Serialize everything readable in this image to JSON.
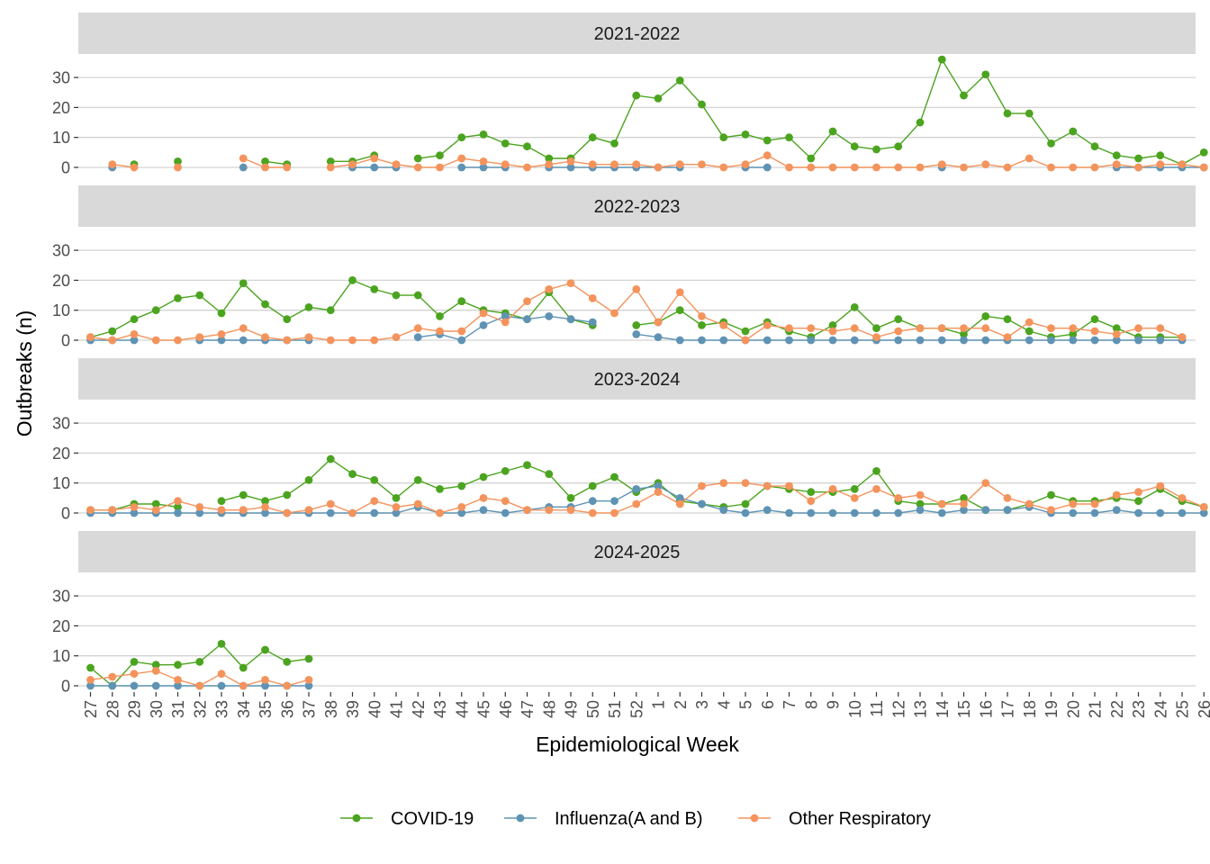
{
  "chart_data": {
    "type": "line",
    "xlabel": "Epidemiological Week",
    "ylabel": "Outbreaks (n)",
    "ylim": [
      0,
      37
    ],
    "yticks": [
      0,
      10,
      20,
      30
    ],
    "grid": true,
    "legend_position": "bottom",
    "x": [
      "27",
      "28",
      "29",
      "30",
      "31",
      "32",
      "33",
      "34",
      "35",
      "36",
      "37",
      "38",
      "39",
      "40",
      "41",
      "42",
      "43",
      "44",
      "45",
      "46",
      "47",
      "48",
      "49",
      "50",
      "51",
      "52",
      "1",
      "2",
      "3",
      "4",
      "5",
      "6",
      "7",
      "8",
      "9",
      "10",
      "11",
      "12",
      "13",
      "14",
      "15",
      "16",
      "17",
      "18",
      "19",
      "20",
      "21",
      "22",
      "23",
      "24",
      "25",
      "26"
    ],
    "series_styles": [
      {
        "name": "COVID-19",
        "color": "#4ba41f"
      },
      {
        "name": "Influenza(A and B)",
        "color": "#5f93b4"
      },
      {
        "name": "Other Respiratory",
        "color": "#f4935c"
      }
    ],
    "panels": [
      {
        "title": "2021-2022",
        "series": [
          {
            "name": "COVID-19",
            "values": [
              null,
              null,
              1,
              null,
              2,
              null,
              null,
              null,
              2,
              1,
              null,
              2,
              2,
              4,
              null,
              3,
              4,
              10,
              11,
              8,
              7,
              3,
              3,
              10,
              8,
              24,
              23,
              29,
              21,
              10,
              11,
              9,
              10,
              3,
              12,
              7,
              6,
              7,
              15,
              36,
              24,
              31,
              18,
              18,
              8,
              12,
              7,
              4,
              3,
              4,
              1,
              5
            ]
          },
          {
            "name": "Influenza(A and B)",
            "values": [
              null,
              0,
              null,
              null,
              null,
              null,
              null,
              0,
              null,
              null,
              null,
              null,
              0,
              0,
              0,
              null,
              null,
              0,
              0,
              0,
              null,
              0,
              0,
              0,
              0,
              0,
              0,
              0,
              null,
              null,
              0,
              0,
              null,
              null,
              null,
              null,
              null,
              null,
              null,
              0,
              null,
              null,
              null,
              null,
              null,
              null,
              null,
              0,
              0,
              0,
              0,
              0
            ]
          },
          {
            "name": "Other Respiratory",
            "values": [
              null,
              1,
              0,
              null,
              0,
              null,
              null,
              3,
              0,
              0,
              null,
              0,
              1,
              3,
              1,
              0,
              0,
              3,
              2,
              1,
              0,
              1,
              2,
              1,
              1,
              1,
              0,
              1,
              1,
              0,
              1,
              4,
              0,
              0,
              0,
              0,
              0,
              0,
              0,
              1,
              0,
              1,
              0,
              3,
              0,
              0,
              0,
              1,
              0,
              1,
              1,
              0
            ]
          }
        ]
      },
      {
        "title": "2022-2023",
        "series": [
          {
            "name": "COVID-19",
            "values": [
              1,
              3,
              7,
              10,
              14,
              15,
              9,
              19,
              12,
              7,
              11,
              10,
              20,
              17,
              15,
              15,
              8,
              13,
              10,
              9,
              7,
              16,
              7,
              5,
              null,
              5,
              6,
              10,
              5,
              6,
              3,
              6,
              3,
              1,
              5,
              11,
              4,
              7,
              4,
              4,
              2,
              8,
              7,
              3,
              1,
              2,
              7,
              4,
              1,
              1,
              1,
              null
            ]
          },
          {
            "name": "Influenza(A and B)",
            "values": [
              0,
              0,
              0,
              null,
              null,
              0,
              0,
              0,
              0,
              0,
              0,
              null,
              null,
              null,
              null,
              1,
              2,
              0,
              5,
              8,
              7,
              8,
              7,
              6,
              null,
              2,
              1,
              0,
              0,
              0,
              0,
              0,
              0,
              0,
              0,
              0,
              0,
              0,
              0,
              0,
              0,
              0,
              0,
              0,
              0,
              0,
              0,
              0,
              0,
              0,
              0,
              null
            ]
          },
          {
            "name": "Other Respiratory",
            "values": [
              1,
              0,
              2,
              0,
              0,
              1,
              2,
              4,
              1,
              0,
              1,
              0,
              0,
              0,
              1,
              4,
              3,
              3,
              9,
              6,
              13,
              17,
              19,
              14,
              9,
              17,
              6,
              16,
              8,
              5,
              0,
              5,
              4,
              4,
              3,
              4,
              1,
              3,
              4,
              4,
              4,
              4,
              1,
              6,
              4,
              4,
              3,
              2,
              4,
              4,
              1,
              null
            ]
          }
        ]
      },
      {
        "title": "2023-2024",
        "series": [
          {
            "name": "COVID-19",
            "values": [
              1,
              1,
              3,
              3,
              2,
              null,
              4,
              6,
              4,
              6,
              11,
              18,
              13,
              11,
              5,
              11,
              8,
              9,
              12,
              14,
              16,
              13,
              5,
              9,
              12,
              7,
              10,
              4,
              3,
              2,
              3,
              9,
              8,
              7,
              7,
              8,
              14,
              4,
              3,
              3,
              5,
              1,
              1,
              3,
              6,
              4,
              4,
              5,
              4,
              8,
              4,
              2
            ]
          },
          {
            "name": "Influenza(A and B)",
            "values": [
              0,
              0,
              0,
              0,
              0,
              0,
              0,
              0,
              0,
              0,
              0,
              0,
              0,
              0,
              0,
              2,
              0,
              0,
              1,
              0,
              1,
              2,
              2,
              4,
              4,
              8,
              9,
              5,
              3,
              1,
              0,
              1,
              0,
              0,
              0,
              0,
              0,
              0,
              1,
              0,
              1,
              1,
              1,
              2,
              0,
              0,
              0,
              1,
              0,
              0,
              0,
              0
            ]
          },
          {
            "name": "Other Respiratory",
            "values": [
              1,
              1,
              2,
              1,
              4,
              2,
              1,
              1,
              2,
              0,
              1,
              3,
              0,
              4,
              2,
              3,
              0,
              2,
              5,
              4,
              1,
              1,
              1,
              0,
              0,
              3,
              7,
              3,
              9,
              10,
              10,
              9,
              9,
              4,
              8,
              5,
              8,
              5,
              6,
              3,
              3,
              10,
              5,
              3,
              1,
              3,
              3,
              6,
              7,
              9,
              5,
              2
            ]
          }
        ]
      },
      {
        "title": "2024-2025",
        "series": [
          {
            "name": "COVID-19",
            "values": [
              6,
              0,
              8,
              7,
              7,
              8,
              14,
              6,
              12,
              8,
              9,
              null,
              null,
              null,
              null,
              null,
              null,
              null,
              null,
              null,
              null,
              null,
              null,
              null,
              null,
              null,
              null,
              null,
              null,
              null,
              null,
              null,
              null,
              null,
              null,
              null,
              null,
              null,
              null,
              null,
              null,
              null,
              null,
              null,
              null,
              null,
              null,
              null,
              null,
              null,
              null,
              null
            ]
          },
          {
            "name": "Influenza(A and B)",
            "values": [
              0,
              0,
              0,
              0,
              0,
              0,
              0,
              0,
              0,
              0,
              0,
              null,
              null,
              null,
              null,
              null,
              null,
              null,
              null,
              null,
              null,
              null,
              null,
              null,
              null,
              null,
              null,
              null,
              null,
              null,
              null,
              null,
              null,
              null,
              null,
              null,
              null,
              null,
              null,
              null,
              null,
              null,
              null,
              null,
              null,
              null,
              null,
              null,
              null,
              null,
              null,
              null
            ]
          },
          {
            "name": "Other Respiratory",
            "values": [
              2,
              3,
              4,
              5,
              2,
              0,
              4,
              0,
              2,
              0,
              2,
              null,
              null,
              null,
              null,
              null,
              null,
              null,
              null,
              null,
              null,
              null,
              null,
              null,
              null,
              null,
              null,
              null,
              null,
              null,
              null,
              null,
              null,
              null,
              null,
              null,
              null,
              null,
              null,
              null,
              null,
              null,
              null,
              null,
              null,
              null,
              null,
              null,
              null,
              null,
              null,
              null
            ]
          }
        ]
      }
    ]
  }
}
